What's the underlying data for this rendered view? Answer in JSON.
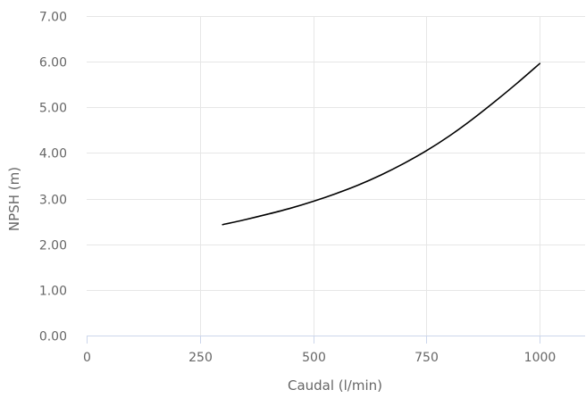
{
  "chart_data": {
    "type": "line",
    "title": "",
    "xlabel": "Caudal (l/min)",
    "ylabel": "NPSH (m)",
    "xlim": [
      0,
      1100
    ],
    "ylim": [
      0,
      7
    ],
    "x_ticks": [
      0,
      250,
      500,
      750,
      1000
    ],
    "x_tick_labels": [
      "0",
      "250",
      "500",
      "750",
      "1000"
    ],
    "y_ticks": [
      0,
      1,
      2,
      3,
      4,
      5,
      6,
      7
    ],
    "y_tick_labels": [
      "0.00",
      "1.00",
      "2.00",
      "3.00",
      "4.00",
      "5.00",
      "6.00",
      "7.00"
    ],
    "grid": true,
    "legend": "none",
    "series": [
      {
        "color": "#000000",
        "x": [
          300,
          350,
          400,
          450,
          500,
          550,
          600,
          650,
          700,
          750,
          800,
          850,
          900,
          950,
          1000
        ],
        "y": [
          2.43,
          2.54,
          2.66,
          2.79,
          2.94,
          3.11,
          3.3,
          3.52,
          3.77,
          4.05,
          4.37,
          4.73,
          5.12,
          5.53,
          5.96
        ]
      }
    ],
    "colors": {
      "grid": "#e6e6e6",
      "axis": "#ccd6eb",
      "tick_text": "#666666",
      "label_text": "#666666"
    }
  }
}
